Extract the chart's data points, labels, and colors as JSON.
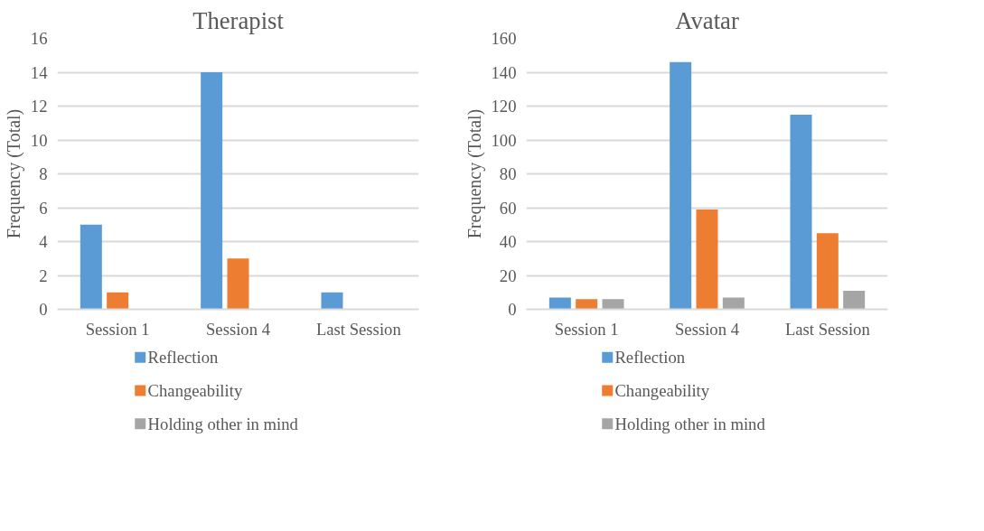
{
  "chart_data": [
    {
      "type": "bar",
      "title": "Therapist",
      "ylabel": "Frequency (Total)",
      "categories": [
        "Session 1",
        "Session 4",
        "Last Session"
      ],
      "ylim": [
        0,
        16
      ],
      "yticks": [
        0,
        2,
        4,
        6,
        8,
        10,
        12,
        14,
        16
      ],
      "grid": "y",
      "legend": "bottom",
      "series": [
        {
          "name": "Reflection",
          "color": "#5b9bd5",
          "values": [
            5,
            14,
            1
          ]
        },
        {
          "name": "Changeability",
          "color": "#ed7d31",
          "values": [
            1,
            3,
            0
          ]
        },
        {
          "name": "Holding other in mind",
          "color": "#a5a5a5",
          "values": [
            0,
            0,
            0
          ]
        }
      ]
    },
    {
      "type": "bar",
      "title": "Avatar",
      "ylabel": "Frequency (Total)",
      "categories": [
        "Session 1",
        "Session 4",
        "Last Session"
      ],
      "ylim": [
        0,
        160
      ],
      "yticks": [
        0,
        20,
        40,
        60,
        80,
        100,
        120,
        140,
        160
      ],
      "grid": "y",
      "legend": "bottom",
      "series": [
        {
          "name": "Reflection",
          "color": "#5b9bd5",
          "values": [
            7,
            146,
            115
          ]
        },
        {
          "name": "Changeability",
          "color": "#ed7d31",
          "values": [
            6,
            59,
            45
          ]
        },
        {
          "name": "Holding other in mind",
          "color": "#a5a5a5",
          "values": [
            6,
            7,
            11
          ]
        }
      ]
    }
  ]
}
